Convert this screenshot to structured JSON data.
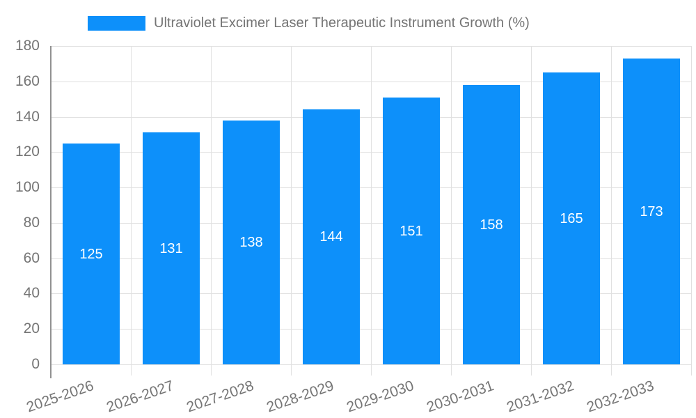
{
  "legend": {
    "label": "Ultraviolet Excimer Laser Therapeutic Instrument Growth (%)"
  },
  "colors": {
    "bar": "#0d90fa",
    "grid_line": "#e0e0e0",
    "axis_line": "#919191",
    "tick_text": "#757575",
    "value_label": "#ffffff",
    "background": "#ffffff"
  },
  "chart_data": {
    "type": "bar",
    "title": "Ultraviolet Excimer Laser Therapeutic Instrument Growth (%)",
    "categories": [
      "2025-2026",
      "2026-2027",
      "2027-2028",
      "2028-2029",
      "2029-2030",
      "2030-2031",
      "2031-2032",
      "2032-2033"
    ],
    "values": [
      125,
      131,
      138,
      144,
      151,
      158,
      165,
      173
    ],
    "xlabel": "",
    "ylabel": "",
    "ylim": [
      0,
      180
    ],
    "yticks": [
      0,
      20,
      40,
      60,
      80,
      100,
      120,
      140,
      160,
      180
    ],
    "grid": true,
    "legend_position": "top",
    "value_labels": "inside-center",
    "x_label_rotation_deg": -19
  }
}
